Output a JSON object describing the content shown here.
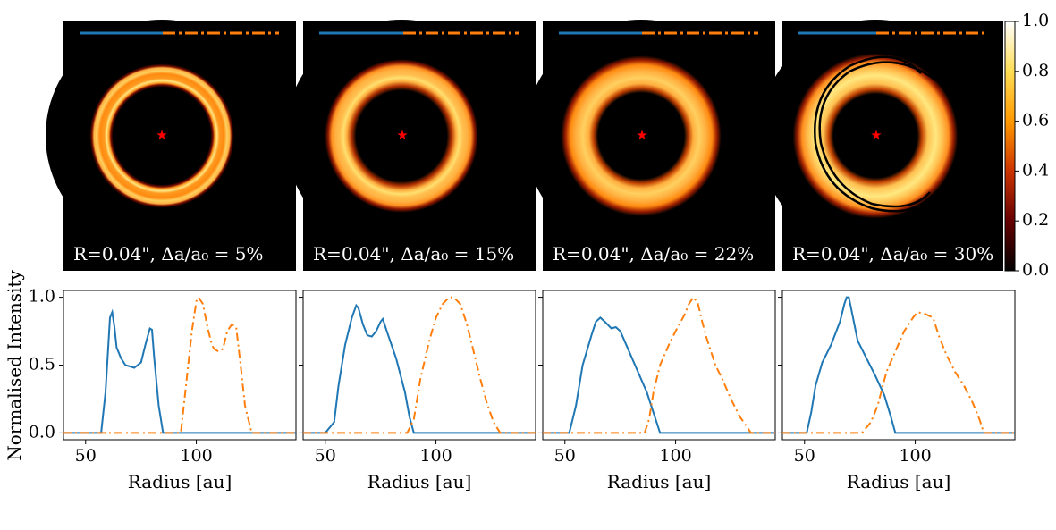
{
  "chart_data": [
    {
      "type": "heatmap",
      "colormap": "afmhot",
      "colorbar": {
        "range": [
          0.0,
          1.0
        ],
        "ticks": [
          "0.0",
          "0.2",
          "0.4",
          "0.6",
          "0.8",
          "1.0"
        ]
      },
      "background": "#000000",
      "star_marker_color": "#ff0000",
      "line_colors": {
        "solid": "#1f77b4",
        "dashdot": "#ff7f0e",
        "contour": "#000000"
      },
      "panels": [
        {
          "caption": "R=0.04\", Δa/a₀ = 5%"
        },
        {
          "caption": "R=0.04\", Δa/a₀ = 15%"
        },
        {
          "caption": "R=0.04\", Δa/a₀ = 22%"
        },
        {
          "caption": "R=0.04\", Δa/a₀ = 30%"
        }
      ]
    },
    {
      "type": "line",
      "ylabel": "Normalised Intensity",
      "xlabel": "Radius [au]",
      "xlim": [
        40,
        145
      ],
      "ylim": [
        -0.05,
        1.05
      ],
      "xticks": [
        50,
        100
      ],
      "yticks": [
        "0.0",
        "0.5",
        "1.0"
      ],
      "series_styles": [
        {
          "color": "#1f77b4",
          "dash": "solid"
        },
        {
          "color": "#ff7f0e",
          "dash": "dashdot"
        }
      ],
      "panels": [
        {
          "series": [
            {
              "values": [
                [
                  40,
                  0
                ],
                [
                  57,
                  0
                ],
                [
                  59,
                  0.3
                ],
                [
                  61,
                  0.85
                ],
                [
                  62,
                  0.89
                ],
                [
                  63,
                  0.78
                ],
                [
                  64,
                  0.63
                ],
                [
                  66,
                  0.55
                ],
                [
                  68,
                  0.5
                ],
                [
                  72,
                  0.48
                ],
                [
                  75,
                  0.52
                ],
                [
                  77,
                  0.65
                ],
                [
                  79,
                  0.77
                ],
                [
                  80,
                  0.76
                ],
                [
                  81,
                  0.55
                ],
                [
                  83,
                  0.2
                ],
                [
                  85,
                  0
                ],
                [
                  145,
                  0
                ]
              ]
            },
            {
              "values": [
                [
                  40,
                  0
                ],
                [
                  93,
                  0
                ],
                [
                  95,
                  0.3
                ],
                [
                  98,
                  0.75
                ],
                [
                  100,
                  0.97
                ],
                [
                  101,
                  1.0
                ],
                [
                  103,
                  0.95
                ],
                [
                  105,
                  0.78
                ],
                [
                  107,
                  0.65
                ],
                [
                  108,
                  0.62
                ],
                [
                  110,
                  0.6
                ],
                [
                  112,
                  0.62
                ],
                [
                  114,
                  0.75
                ],
                [
                  116,
                  0.8
                ],
                [
                  118,
                  0.78
                ],
                [
                  120,
                  0.5
                ],
                [
                  122,
                  0.2
                ],
                [
                  125,
                  0
                ],
                [
                  145,
                  0
                ]
              ]
            }
          ]
        },
        {
          "series": [
            {
              "values": [
                [
                  40,
                  0
                ],
                [
                  50,
                  0
                ],
                [
                  54,
                  0.08
                ],
                [
                  56,
                  0.35
                ],
                [
                  59,
                  0.65
                ],
                [
                  62,
                  0.85
                ],
                [
                  64,
                  0.94
                ],
                [
                  65,
                  0.92
                ],
                [
                  67,
                  0.8
                ],
                [
                  69,
                  0.72
                ],
                [
                  71,
                  0.71
                ],
                [
                  73,
                  0.75
                ],
                [
                  75,
                  0.82
                ],
                [
                  76,
                  0.84
                ],
                [
                  78,
                  0.74
                ],
                [
                  82,
                  0.55
                ],
                [
                  86,
                  0.3
                ],
                [
                  88,
                  0.12
                ],
                [
                  90,
                  0
                ],
                [
                  145,
                  0
                ]
              ]
            },
            {
              "values": [
                [
                  40,
                  0
                ],
                [
                  87,
                  0
                ],
                [
                  90,
                  0.1
                ],
                [
                  93,
                  0.4
                ],
                [
                  97,
                  0.68
                ],
                [
                  100,
                  0.85
                ],
                [
                  103,
                  0.95
                ],
                [
                  106,
                  1.0
                ],
                [
                  108,
                  1.0
                ],
                [
                  111,
                  0.95
                ],
                [
                  114,
                  0.8
                ],
                [
                  117,
                  0.6
                ],
                [
                  120,
                  0.4
                ],
                [
                  123,
                  0.22
                ],
                [
                  126,
                  0.08
                ],
                [
                  129,
                  0
                ],
                [
                  145,
                  0
                ]
              ]
            }
          ]
        },
        {
          "series": [
            {
              "values": [
                [
                  40,
                  0
                ],
                [
                  52,
                  0
                ],
                [
                  55,
                  0.2
                ],
                [
                  58,
                  0.5
                ],
                [
                  62,
                  0.72
                ],
                [
                  64,
                  0.82
                ],
                [
                  66,
                  0.85
                ],
                [
                  68,
                  0.82
                ],
                [
                  71,
                  0.77
                ],
                [
                  73,
                  0.78
                ],
                [
                  75,
                  0.75
                ],
                [
                  79,
                  0.6
                ],
                [
                  83,
                  0.45
                ],
                [
                  87,
                  0.3
                ],
                [
                  90,
                  0.15
                ],
                [
                  93,
                  0
                ],
                [
                  145,
                  0
                ]
              ]
            },
            {
              "values": [
                [
                  40,
                  0
                ],
                [
                  86,
                  0
                ],
                [
                  88,
                  0.1
                ],
                [
                  90,
                  0.3
                ],
                [
                  93,
                  0.5
                ],
                [
                  97,
                  0.65
                ],
                [
                  100,
                  0.75
                ],
                [
                  104,
                  0.87
                ],
                [
                  106,
                  0.95
                ],
                [
                  108,
                  1.0
                ],
                [
                  110,
                  0.96
                ],
                [
                  112,
                  0.82
                ],
                [
                  114,
                  0.7
                ],
                [
                  118,
                  0.5
                ],
                [
                  121,
                  0.4
                ],
                [
                  125,
                  0.25
                ],
                [
                  129,
                  0.12
                ],
                [
                  132,
                  0.05
                ],
                [
                  134,
                  0
                ],
                [
                  145,
                  0
                ]
              ]
            }
          ]
        },
        {
          "series": [
            {
              "values": [
                [
                  40,
                  0
                ],
                [
                  51,
                  0
                ],
                [
                  53,
                  0.15
                ],
                [
                  55,
                  0.35
                ],
                [
                  58,
                  0.52
                ],
                [
                  62,
                  0.65
                ],
                [
                  66,
                  0.82
                ],
                [
                  68,
                  0.95
                ],
                [
                  69,
                  1.0
                ],
                [
                  70,
                  1.0
                ],
                [
                  71,
                  0.92
                ],
                [
                  74,
                  0.68
                ],
                [
                  78,
                  0.55
                ],
                [
                  82,
                  0.42
                ],
                [
                  86,
                  0.28
                ],
                [
                  89,
                  0.12
                ],
                [
                  91,
                  0
                ],
                [
                  145,
                  0
                ]
              ]
            },
            {
              "values": [
                [
                  40,
                  0
                ],
                [
                  76,
                  0
                ],
                [
                  80,
                  0.08
                ],
                [
                  83,
                  0.2
                ],
                [
                  87,
                  0.45
                ],
                [
                  91,
                  0.6
                ],
                [
                  95,
                  0.75
                ],
                [
                  99,
                  0.85
                ],
                [
                  101,
                  0.89
                ],
                [
                  104,
                  0.88
                ],
                [
                  108,
                  0.85
                ],
                [
                  111,
                  0.7
                ],
                [
                  114,
                  0.58
                ],
                [
                  118,
                  0.45
                ],
                [
                  122,
                  0.35
                ],
                [
                  126,
                  0.22
                ],
                [
                  129,
                  0.1
                ],
                [
                  131,
                  0
                ],
                [
                  145,
                  0
                ]
              ]
            }
          ]
        }
      ]
    }
  ]
}
